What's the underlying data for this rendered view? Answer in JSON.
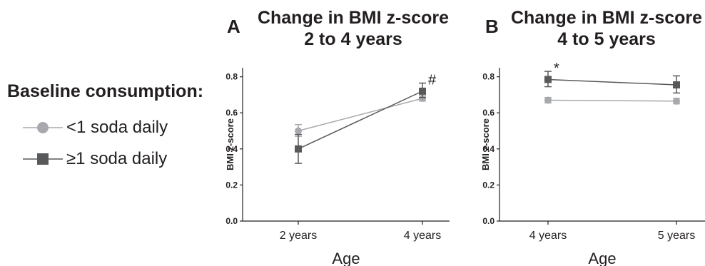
{
  "legend": {
    "title": "Baseline consumption:",
    "items": [
      {
        "label": "<1 soda daily",
        "marker": "circle",
        "color": "#a7a9ac"
      },
      {
        "label": "≥1 soda daily",
        "marker": "square",
        "color": "#58595b"
      }
    ]
  },
  "chart_data": [
    {
      "type": "line",
      "panel_label": "A",
      "title_line1": "Change in BMI z-score",
      "title_line2": "2 to 4 years",
      "xlabel": "Age",
      "ylabel": "BMI z-score",
      "categories": [
        "2 years",
        "4 years"
      ],
      "ylim": [
        0,
        0.85
      ],
      "yticks": [
        "0.0",
        "0.2",
        "0.4",
        "0.6",
        "0.8"
      ],
      "series": [
        {
          "name": "<1 soda daily",
          "values": [
            0.5,
            0.68
          ],
          "err_low": [
            0.47,
            0.665
          ],
          "err_high": [
            0.535,
            0.695
          ],
          "marker": "circle",
          "color": "#a7a9ac"
        },
        {
          "name": "≥1 soda daily",
          "values": [
            0.4,
            0.72
          ],
          "err_low": [
            0.32,
            0.685
          ],
          "err_high": [
            0.48,
            0.765
          ],
          "marker": "square",
          "color": "#58595b"
        }
      ],
      "annotations": [
        {
          "text": "#",
          "category": "4 years"
        }
      ]
    },
    {
      "type": "line",
      "panel_label": "B",
      "title_line1": "Change in BMI z-score",
      "title_line2": "4 to 5 years",
      "xlabel": "Age",
      "ylabel": "BMI z-score",
      "categories": [
        "4 years",
        "5 years"
      ],
      "ylim": [
        0,
        0.85
      ],
      "yticks": [
        "0.0",
        "0.2",
        "0.4",
        "0.6",
        "0.8"
      ],
      "series": [
        {
          "name": "<1 soda daily",
          "values": [
            0.67,
            0.665
          ],
          "err_low": [
            0.655,
            0.65
          ],
          "err_high": [
            0.685,
            0.68
          ],
          "marker": "circle",
          "color": "#a7a9ac"
        },
        {
          "name": "≥1 soda daily",
          "values": [
            0.785,
            0.755
          ],
          "err_low": [
            0.745,
            0.71
          ],
          "err_high": [
            0.83,
            0.805
          ],
          "marker": "square",
          "color": "#58595b"
        }
      ],
      "annotations": [
        {
          "text": "*",
          "category": "4 years"
        }
      ]
    }
  ]
}
